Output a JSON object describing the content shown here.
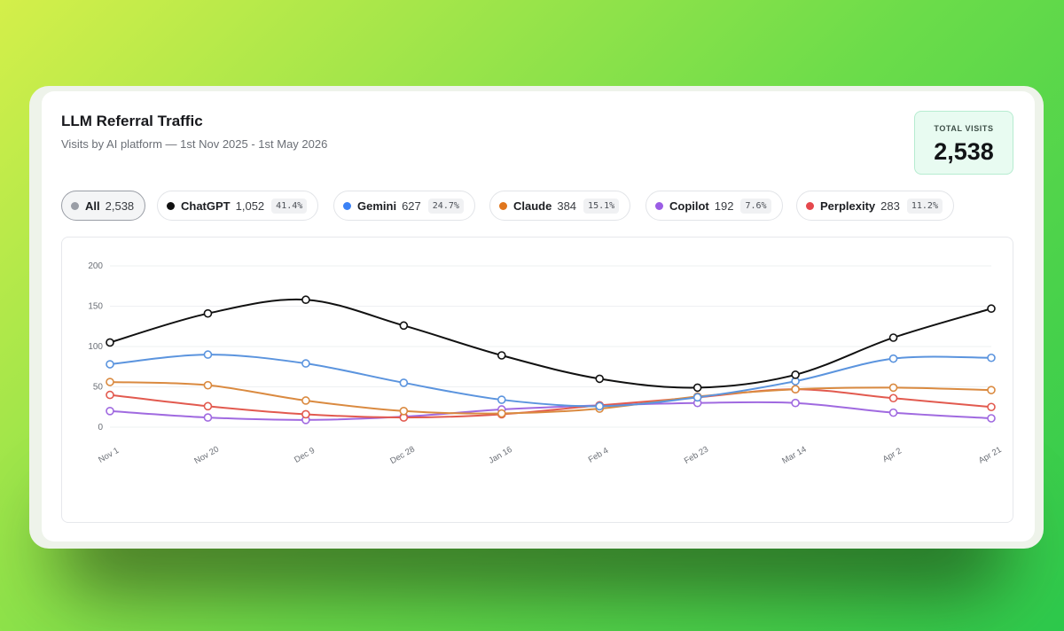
{
  "header": {
    "title": "LLM Referral Traffic",
    "subtitle": "Visits by AI platform — 1st Nov 2025 - 1st May 2026"
  },
  "total": {
    "label": "TOTAL VISITS",
    "value": "2,538"
  },
  "pills": [
    {
      "name": "All",
      "count": "2,538",
      "pct": "",
      "color": "#9a9ea6",
      "active": true
    },
    {
      "name": "ChatGPT",
      "count": "1,052",
      "pct": "41.4%",
      "color": "#111111",
      "active": false
    },
    {
      "name": "Gemini",
      "count": "627",
      "pct": "24.7%",
      "color": "#3b82f6",
      "active": false
    },
    {
      "name": "Claude",
      "count": "384",
      "pct": "15.1%",
      "color": "#e0761d",
      "active": false
    },
    {
      "name": "Copilot",
      "count": "192",
      "pct": "7.6%",
      "color": "#9b5de5",
      "active": false
    },
    {
      "name": "Perplexity",
      "count": "283",
      "pct": "11.2%",
      "color": "#e5484d",
      "active": false
    }
  ],
  "chart_data": {
    "type": "line",
    "categories": [
      "Nov 1",
      "Nov 20",
      "Dec 9",
      "Dec 28",
      "Jan 16",
      "Feb 4",
      "Feb 23",
      "Mar 14",
      "Apr 2",
      "Apr 21"
    ],
    "ylim": [
      0,
      200
    ],
    "yticks": [
      0,
      50,
      100,
      150,
      200
    ],
    "grid": true,
    "series": [
      {
        "name": "ChatGPT",
        "color": "#111111",
        "values": [
          105,
          141,
          158,
          126,
          89,
          60,
          49,
          65,
          111,
          147
        ]
      },
      {
        "name": "Gemini",
        "color": "#5b94de",
        "values": [
          78,
          90,
          79,
          55,
          34,
          26,
          37,
          57,
          85,
          86
        ]
      },
      {
        "name": "Claude",
        "color": "#da8a40",
        "values": [
          56,
          52,
          33,
          20,
          17,
          23,
          38,
          47,
          49,
          46
        ]
      },
      {
        "name": "Perplexity",
        "color": "#e25a4f",
        "values": [
          40,
          26,
          16,
          12,
          16,
          27,
          37,
          47,
          36,
          25
        ]
      },
      {
        "name": "Copilot",
        "color": "#a06ae0",
        "values": [
          20,
          12,
          9,
          13,
          22,
          27,
          30,
          30,
          18,
          11
        ]
      }
    ]
  }
}
